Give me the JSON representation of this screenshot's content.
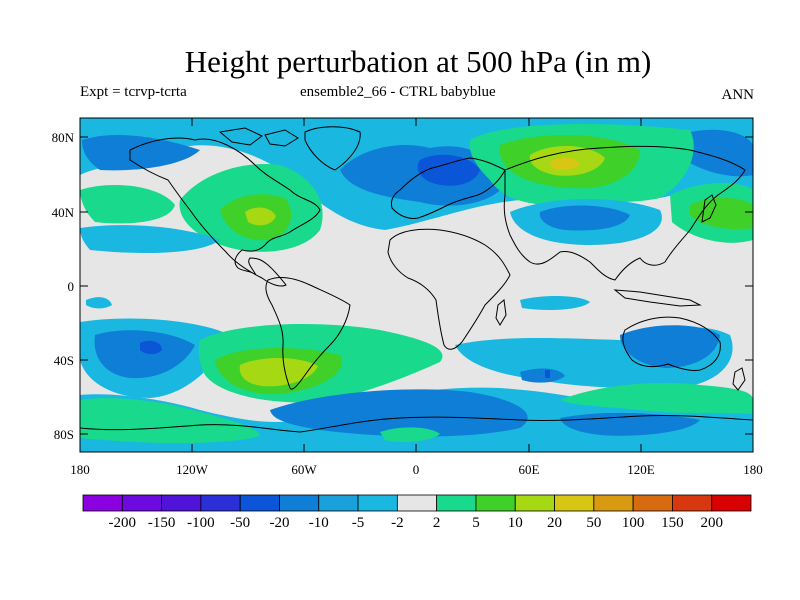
{
  "title": "Height perturbation at 500 hPa (in m)",
  "subtitle_left": "Expt = tcrvp-tcrta",
  "subtitle_center": "ensemble2_66 - CTRL babyblue",
  "subtitle_right": "ANN",
  "map": {
    "projection": "cylindrical equidistant",
    "lat_ticks": [
      "80N",
      "40N",
      "0",
      "40S",
      "80S"
    ],
    "lon_ticks": [
      "180",
      "120W",
      "60W",
      "0",
      "60E",
      "120E",
      "180"
    ],
    "background_color": "#e6e6e6",
    "coastline_color": "#000000"
  },
  "colorbar": {
    "labels": [
      "-200",
      "-150",
      "-100",
      "-50",
      "-20",
      "-10",
      "-5",
      "-2",
      "2",
      "5",
      "10",
      "20",
      "50",
      "100",
      "150",
      "200"
    ],
    "colors": [
      "#8b00e0",
      "#6c0ae0",
      "#5014d8",
      "#2b2fd8",
      "#0a55d8",
      "#0f7ed6",
      "#1aa0da",
      "#1ab8e0",
      "#e6e6e6",
      "#19d98c",
      "#40d02a",
      "#a6d814",
      "#d8c614",
      "#d89a10",
      "#d86a10",
      "#d8380e",
      "#d80000"
    ]
  }
}
